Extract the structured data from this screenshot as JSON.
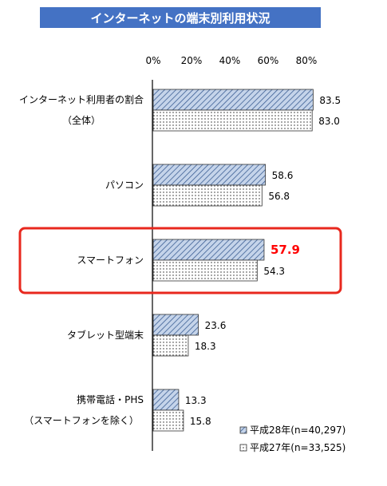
{
  "chart_data": {
    "type": "bar",
    "orientation": "horizontal",
    "title": "インターネットの端末別利用状況",
    "title_bg": "#4472c4",
    "xticks": [
      "0%",
      "20%",
      "40%",
      "60%",
      "80%"
    ],
    "xlim": [
      0,
      100
    ],
    "categories": [
      [
        "インターネット利用者の割合",
        "（全体）"
      ],
      [
        "パソコン"
      ],
      [
        "スマートフォン"
      ],
      [
        "タブレット型端末"
      ],
      [
        "携帯電話・PHS",
        "（スマートフォンを除く）"
      ]
    ],
    "series": [
      {
        "name": "平成28年(n=40,297)",
        "values": [
          83.5,
          58.6,
          57.9,
          23.6,
          13.3
        ],
        "value_labels": [
          "83.5",
          "58.6",
          "57.9",
          "23.6",
          "13.3"
        ],
        "pattern": "diagonal-hatch",
        "color": "#b7c9e2"
      },
      {
        "name": "平成27年(n=33,525)",
        "values": [
          83.0,
          56.8,
          54.3,
          18.3,
          15.8
        ],
        "value_labels": [
          "83.0",
          "56.8",
          "54.3",
          "18.3",
          "15.8"
        ],
        "pattern": "dots",
        "color": "#ffffff"
      }
    ],
    "highlight": {
      "category_index": 2,
      "series_index": 0,
      "border_color": "#e8281e",
      "label_color": "#ff0000"
    },
    "legend": "bottom-right",
    "grid": false
  }
}
